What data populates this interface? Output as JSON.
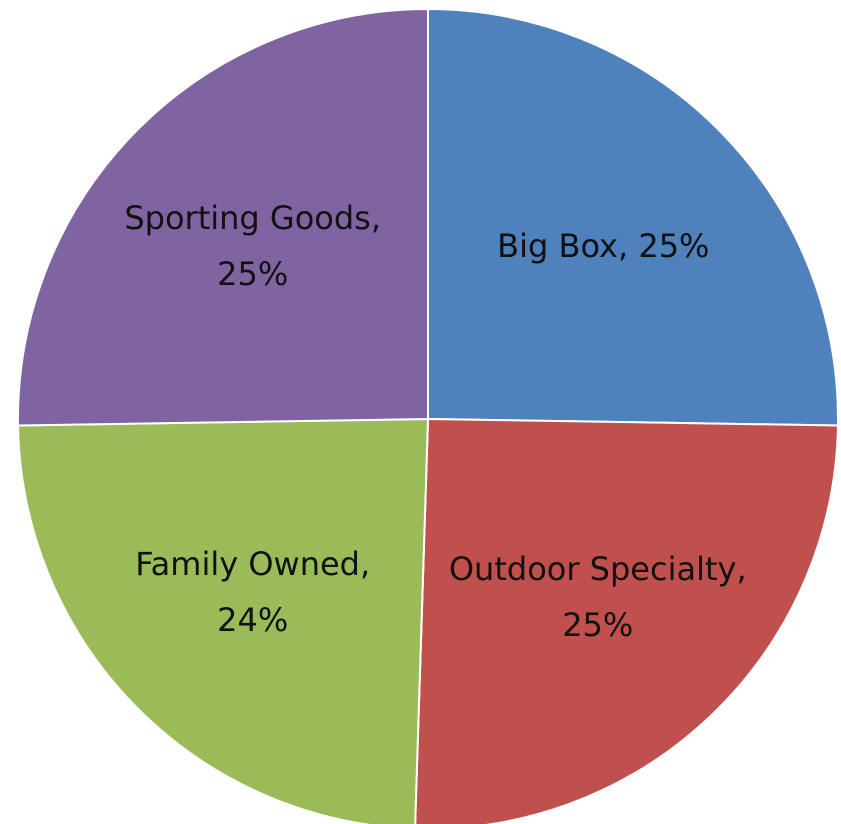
{
  "chart_data": {
    "type": "pie",
    "values": [
      25,
      25,
      24,
      25
    ],
    "value_labels": [
      "Big Box, 25%",
      "Outdoor Specialty, 25%",
      "Family Owned, 24%",
      "Sporting Goods, 25%"
    ],
    "colors": [
      "#4f81bd",
      "#c0504d",
      "#9bbb59",
      "#8064a2"
    ]
  }
}
